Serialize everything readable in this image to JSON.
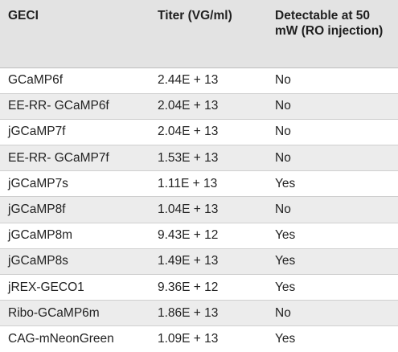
{
  "table": {
    "headers": [
      "GECI",
      "Titer (VG/ml)",
      "Detectable at 50 mW (RO injection)"
    ],
    "rows": [
      [
        "GCaMP6f",
        "2.44E + 13",
        "No"
      ],
      [
        "EE-RR- GCaMP6f",
        "2.04E + 13",
        "No"
      ],
      [
        "jGCaMP7f",
        "2.04E + 13",
        "No"
      ],
      [
        "EE-RR- GCaMP7f",
        "1.53E + 13",
        "No"
      ],
      [
        "jGCaMP7s",
        "1.11E + 13",
        "Yes"
      ],
      [
        "jGCaMP8f",
        "1.04E + 13",
        "No"
      ],
      [
        "jGCaMP8m",
        "9.43E + 12",
        "Yes"
      ],
      [
        "jGCaMP8s",
        "1.49E + 13",
        "Yes"
      ],
      [
        "jREX-GECO1",
        "9.36E + 12",
        "Yes"
      ],
      [
        "Ribo-GCaMP6m",
        "1.86E + 13",
        "No"
      ],
      [
        "CAG-mNeonGreen",
        "1.09E + 13",
        "Yes"
      ]
    ]
  },
  "colors": {
    "header_bg": "#e3e3e3",
    "row_alt_bg": "#ececec",
    "row_bg": "#ffffff",
    "text": "#222222"
  }
}
